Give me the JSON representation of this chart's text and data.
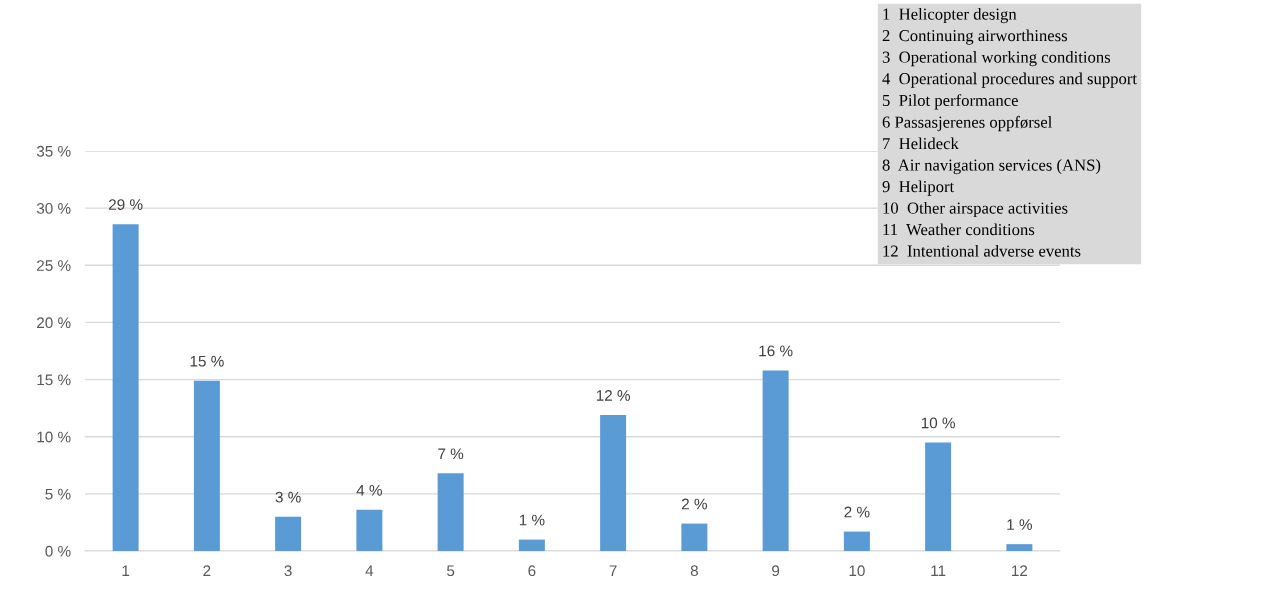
{
  "chart_data": {
    "type": "bar",
    "categories": [
      "1",
      "2",
      "3",
      "4",
      "5",
      "6",
      "7",
      "8",
      "9",
      "10",
      "11",
      "12"
    ],
    "values": [
      28.6,
      14.9,
      3.0,
      3.6,
      6.8,
      1.0,
      11.9,
      2.4,
      15.8,
      1.7,
      9.5,
      0.6
    ],
    "value_labels": [
      "29 %",
      "15 %",
      "3 %",
      "4 %",
      "7 %",
      "1 %",
      "12 %",
      "2 %",
      "16 %",
      "2 %",
      "10 %",
      "1 %"
    ],
    "color": "#5b9bd5",
    "ylim": [
      0,
      35
    ],
    "yticks": [
      {
        "value": 0,
        "label": "0 %"
      },
      {
        "value": 5,
        "label": "5 %"
      },
      {
        "value": 10,
        "label": "10 %"
      },
      {
        "value": 15,
        "label": "15 %"
      },
      {
        "value": 20,
        "label": "20 %"
      },
      {
        "value": 25,
        "label": "25 %"
      },
      {
        "value": 30,
        "label": "30 %"
      },
      {
        "value": 35,
        "label": "35 %"
      }
    ],
    "grid": "y",
    "annotations": [
      "1  Helicopter design",
      "2  Continuing airworthiness",
      "3  Operational working conditions",
      "4  Operational procedures and support",
      "5  Pilot performance",
      "6 Passasjerenes oppførsel",
      "7  Helideck",
      "8  Air navigation services (ANS)",
      "9  Heliport",
      "10  Other airspace activities",
      "11  Weather conditions",
      "12  Intentional adverse events"
    ]
  }
}
